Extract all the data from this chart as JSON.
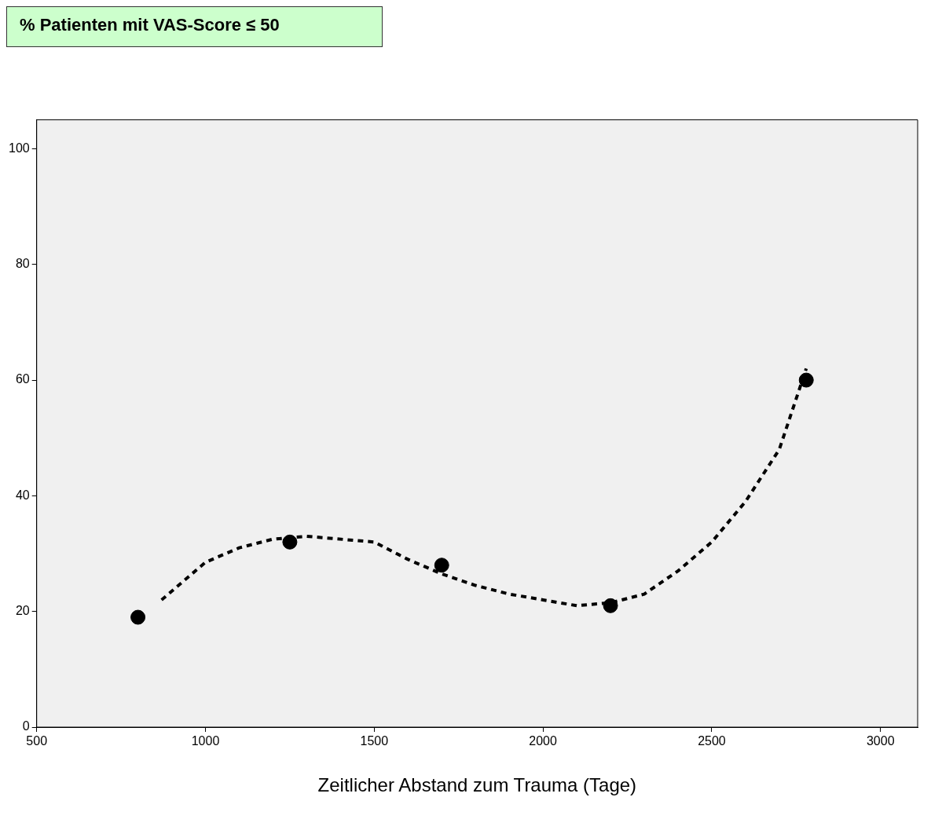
{
  "chart_data": {
    "type": "scatter",
    "title": "% Patienten mit VAS-Score ≤ 50",
    "xlabel": "Zeitlicher Abstand zum Trauma (Tage)",
    "series": [
      {
        "color": "#000000",
        "marker": "circle",
        "x": [
          800,
          1250,
          1700,
          2200,
          2780
        ],
        "values": [
          19,
          32,
          28,
          21,
          60
        ]
      },
      {
        "type": "line",
        "color": "#000000",
        "line_style": "dashed",
        "marker": "none",
        "x": [
          870,
          1000,
          1100,
          1200,
          1300,
          1500,
          1600,
          1700,
          1800,
          1900,
          2000,
          2100,
          2200,
          2300,
          2400,
          2500,
          2600,
          2700,
          2780
        ],
        "values": [
          22,
          28.5,
          31,
          32.5,
          33,
          32,
          29,
          26.5,
          24.5,
          23,
          22,
          21,
          21.5,
          23,
          27,
          32,
          39,
          48,
          62
        ]
      }
    ],
    "xlim": [
      500,
      3110
    ],
    "xticks": [
      500,
      1000,
      1500,
      2000,
      2500,
      3000
    ],
    "ylim": [
      0,
      105
    ],
    "yticks": [
      0,
      20,
      40,
      60,
      80,
      100
    ],
    "grid": false,
    "legend": false
  }
}
